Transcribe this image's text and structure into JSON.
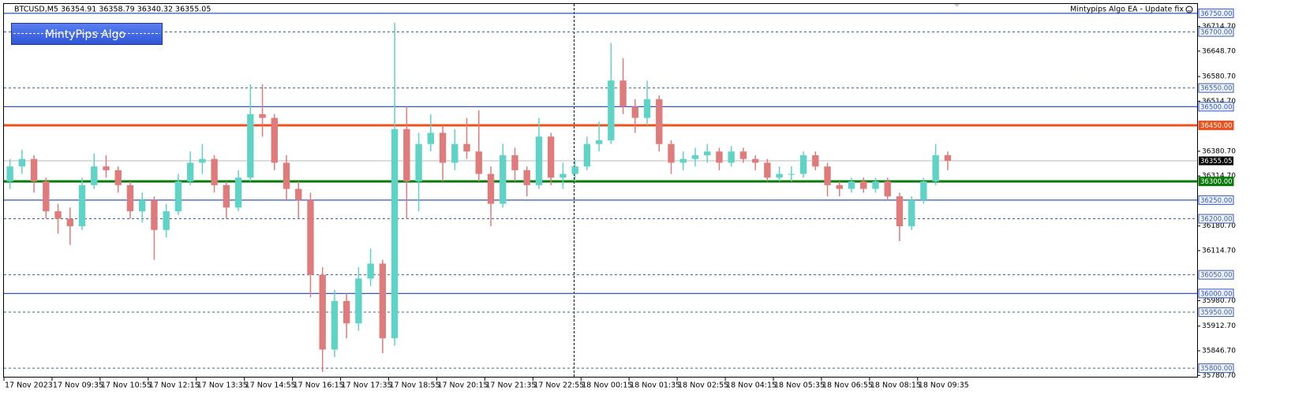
{
  "chart_data": {
    "type": "candlestick",
    "symbol": "BTCUSD,M5",
    "quote": "36354.91 36358.79 36340.32 36355.05",
    "ea_label": "Mintypips Algo EA - Update fix",
    "button_label": "MintyPips Algo",
    "up_color": "#5fd3c6",
    "down_color": "#e07b7b",
    "xlim": [
      0,
      397
    ],
    "ylim": [
      35775,
      36775
    ],
    "xticks": [
      {
        "value": 0,
        "label": "17 Nov 2023"
      },
      {
        "value": 16,
        "label": "17 Nov 09:35"
      },
      {
        "value": 32,
        "label": "17 Nov 10:55"
      },
      {
        "value": 48,
        "label": "17 Nov 12:15"
      },
      {
        "value": 64,
        "label": "17 Nov 13:35"
      },
      {
        "value": 80,
        "label": "17 Nov 14:55"
      },
      {
        "value": 96,
        "label": "17 Nov 16:15"
      },
      {
        "value": 112,
        "label": "17 Nov 17:35"
      },
      {
        "value": 128,
        "label": "17 Nov 18:55"
      },
      {
        "value": 144,
        "label": "17 Nov 20:15"
      },
      {
        "value": 160,
        "label": "17 Nov 21:35"
      },
      {
        "value": 176,
        "label": "17 Nov 22:55"
      },
      {
        "value": 192,
        "label": "18 Nov 00:15"
      },
      {
        "value": 208,
        "label": "18 Nov 01:35"
      },
      {
        "value": 224,
        "label": "18 Nov 02:55"
      },
      {
        "value": 240,
        "label": "18 Nov 04:15"
      },
      {
        "value": 256,
        "label": "18 Nov 05:35"
      },
      {
        "value": 272,
        "label": "18 Nov 06:55"
      },
      {
        "value": 288,
        "label": "18 Nov 08:15"
      },
      {
        "value": 304,
        "label": "18 Nov 09:35"
      }
    ],
    "yticks": [
      {
        "value": 36714.7,
        "label": "36714.70"
      },
      {
        "value": 36648.7,
        "label": "36648.70"
      },
      {
        "value": 36580.7,
        "label": "36580.70"
      },
      {
        "value": 36514.7,
        "label": "36514.70"
      },
      {
        "value": 36380.7,
        "label": "36380.70"
      },
      {
        "value": 36314.7,
        "label": "36314.70"
      },
      {
        "value": 36180.7,
        "label": "36180.70"
      },
      {
        "value": 36114.7,
        "label": "36114.70"
      },
      {
        "value": 35980.7,
        "label": "35980.70"
      },
      {
        "value": 35912.7,
        "label": "35912.70"
      },
      {
        "value": 35846.7,
        "label": "35846.70"
      },
      {
        "value": 35780.7,
        "label": "35780.70"
      }
    ],
    "levels": [
      {
        "value": 36750,
        "label": "36750.00",
        "color": "#2f55c8",
        "style": "solid",
        "width": 1.3
      },
      {
        "value": 36700,
        "label": "36700.00",
        "color": "#3d5f9e",
        "style": "dashed",
        "width": 1
      },
      {
        "value": 36550,
        "label": "36550.00",
        "color": "#3d5f9e",
        "style": "dashed",
        "width": 1
      },
      {
        "value": 36500,
        "label": "36500.00",
        "color": "#2f55c8",
        "style": "solid",
        "width": 1.3
      },
      {
        "value": 36450,
        "label": "36450.00",
        "color": "#f0501a",
        "style": "solid",
        "width": 3
      },
      {
        "value": 36300,
        "label": "36300.00",
        "color": "#0a7a0a",
        "style": "solid",
        "width": 3
      },
      {
        "value": 36250,
        "label": "36250.00",
        "color": "#2f55c8",
        "style": "solid",
        "width": 1.3
      },
      {
        "value": 36200,
        "label": "36200.00",
        "color": "#3d5f9e",
        "style": "dashed",
        "width": 1
      },
      {
        "value": 36050,
        "label": "36050.00",
        "color": "#3d5f9e",
        "style": "dashed",
        "width": 1
      },
      {
        "value": 36000,
        "label": "36000.00",
        "color": "#2f55c8",
        "style": "solid",
        "width": 1.3
      },
      {
        "value": 35950,
        "label": "35950.00",
        "color": "#3d5f9e",
        "style": "dashed",
        "width": 1
      },
      {
        "value": 35800,
        "label": "35800.00",
        "color": "#3d5f9e",
        "style": "dashed",
        "width": 1
      }
    ],
    "current_price": 36355.05,
    "x": [
      2,
      6,
      10,
      14,
      18,
      22,
      26,
      30,
      34,
      38,
      42,
      46,
      50,
      54,
      58,
      62,
      66,
      70,
      74,
      78,
      82,
      86,
      90,
      94,
      98,
      102,
      106,
      110,
      114,
      118,
      122,
      126,
      130,
      134,
      138,
      142,
      146,
      150,
      154,
      158,
      162,
      166,
      170,
      174,
      178,
      182,
      186,
      190,
      194,
      198,
      202,
      206,
      210,
      214,
      218,
      222,
      226,
      230,
      234,
      238,
      242,
      246,
      250,
      254,
      258,
      262,
      266,
      270,
      274,
      278,
      282,
      286,
      290,
      294,
      298,
      302,
      306,
      310,
      314
    ],
    "ohlc": [
      [
        36300,
        36360,
        36280,
        36340
      ],
      [
        36340,
        36385,
        36320,
        36360
      ],
      [
        36360,
        36370,
        36270,
        36300
      ],
      [
        36300,
        36310,
        36200,
        36220
      ],
      [
        36220,
        36240,
        36160,
        36200
      ],
      [
        36200,
        36230,
        36130,
        36180
      ],
      [
        36180,
        36310,
        36170,
        36290
      ],
      [
        36290,
        36375,
        36280,
        36340
      ],
      [
        36340,
        36370,
        36310,
        36330
      ],
      [
        36330,
        36340,
        36270,
        36290
      ],
      [
        36290,
        36300,
        36200,
        36220
      ],
      [
        36220,
        36270,
        36190,
        36250
      ],
      [
        36250,
        36260,
        36090,
        36170
      ],
      [
        36170,
        36240,
        36150,
        36220
      ],
      [
        36220,
        36320,
        36210,
        36300
      ],
      [
        36300,
        36380,
        36290,
        36350
      ],
      [
        36350,
        36400,
        36320,
        36360
      ],
      [
        36360,
        36370,
        36270,
        36290
      ],
      [
        36290,
        36300,
        36200,
        36230
      ],
      [
        36230,
        36330,
        36220,
        36310
      ],
      [
        36310,
        36560,
        36300,
        36480
      ],
      [
        36480,
        36560,
        36420,
        36470
      ],
      [
        36470,
        36480,
        36330,
        36350
      ],
      [
        36350,
        36370,
        36250,
        36280
      ],
      [
        36280,
        36300,
        36200,
        36250
      ],
      [
        36250,
        36270,
        35990,
        36050
      ],
      [
        36050,
        36070,
        35790,
        35850
      ],
      [
        35850,
        36010,
        35830,
        35980
      ],
      [
        35980,
        36000,
        35880,
        35920
      ],
      [
        35920,
        36070,
        35900,
        36040
      ],
      [
        36040,
        36120,
        36020,
        36080
      ],
      [
        36080,
        36090,
        35840,
        35880
      ],
      [
        35880,
        36725,
        35860,
        36440
      ],
      [
        36440,
        36500,
        36200,
        36300
      ],
      [
        36300,
        36430,
        36220,
        36400
      ],
      [
        36400,
        36480,
        36380,
        36430
      ],
      [
        36430,
        36450,
        36300,
        36350
      ],
      [
        36350,
        36440,
        36330,
        36400
      ],
      [
        36400,
        36470,
        36360,
        36380
      ],
      [
        36380,
        36490,
        36300,
        36320
      ],
      [
        36320,
        36340,
        36180,
        36240
      ],
      [
        36240,
        36400,
        36230,
        36370
      ],
      [
        36370,
        36390,
        36300,
        36330
      ],
      [
        36330,
        36340,
        36260,
        36290
      ],
      [
        36290,
        36470,
        36280,
        36420
      ],
      [
        36420,
        36430,
        36290,
        36310
      ],
      [
        36310,
        36350,
        36280,
        36320
      ],
      [
        36320,
        36360,
        36300,
        36340
      ],
      [
        36340,
        36420,
        36330,
        36400
      ],
      [
        36400,
        36460,
        36380,
        36410
      ],
      [
        36410,
        36670,
        36400,
        36570
      ],
      [
        36570,
        36630,
        36480,
        36500
      ],
      [
        36500,
        36520,
        36430,
        36470
      ],
      [
        36470,
        36570,
        36450,
        36520
      ],
      [
        36520,
        36530,
        36380,
        36400
      ],
      [
        36400,
        36410,
        36320,
        36350
      ],
      [
        36350,
        36380,
        36330,
        36360
      ],
      [
        36360,
        36390,
        36340,
        36370
      ],
      [
        36370,
        36400,
        36350,
        36380
      ],
      [
        36380,
        36390,
        36330,
        36350
      ],
      [
        36350,
        36395,
        36340,
        36380
      ],
      [
        36380,
        36390,
        36350,
        36360
      ],
      [
        36360,
        36370,
        36330,
        36350
      ],
      [
        36350,
        36360,
        36300,
        36310
      ],
      [
        36310,
        36340,
        36300,
        36320
      ],
      [
        36320,
        36340,
        36300,
        36320
      ],
      [
        36320,
        36380,
        36310,
        36370
      ],
      [
        36370,
        36380,
        36330,
        36340
      ],
      [
        36340,
        36350,
        36260,
        36290
      ],
      [
        36290,
        36300,
        36260,
        36280
      ],
      [
        36280,
        36310,
        36270,
        36300
      ],
      [
        36300,
        36310,
        36270,
        36280
      ],
      [
        36280,
        36310,
        36270,
        36300
      ],
      [
        36300,
        36310,
        36250,
        36260
      ],
      [
        36260,
        36270,
        36140,
        36180
      ],
      [
        36180,
        36260,
        36170,
        36250
      ],
      [
        36250,
        36310,
        36240,
        36300
      ],
      [
        36300,
        36400,
        36290,
        36370
      ],
      [
        36370,
        36380,
        36330,
        36355.05
      ]
    ]
  }
}
